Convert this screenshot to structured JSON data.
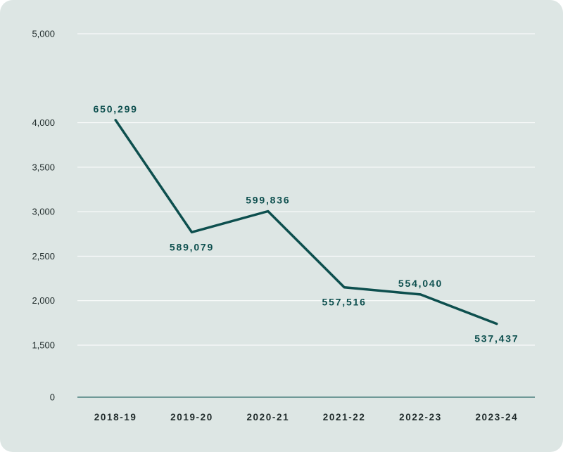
{
  "colors": {
    "background": "#dde6e4",
    "line": "#0d4f4e",
    "label": "#0d4f4e",
    "grid": "#ffffff",
    "axis": "#2e6b69",
    "tick_text": "#1f2a2a"
  },
  "chart_data": {
    "type": "line",
    "categories": [
      "2018-19",
      "2019-20",
      "2020-21",
      "2021-22",
      "2022-23",
      "2023-24"
    ],
    "y_ticks": [
      0,
      1500,
      2000,
      2500,
      3000,
      3500,
      4000,
      5000
    ],
    "y_tick_labels": [
      "0",
      "1,500",
      "2,000",
      "2,500",
      "3,000",
      "3,500",
      "4,000",
      "5,000"
    ],
    "series": [
      {
        "values": [
          4030,
          2770,
          3005,
          2150,
          2070,
          1740
        ],
        "labels": [
          "650,299",
          "589,079",
          "599,836",
          "557,516",
          "554,040",
          "537,437"
        ]
      }
    ],
    "label_positions": [
      "above",
      "below",
      "above",
      "below",
      "above",
      "below"
    ],
    "grid": true
  }
}
